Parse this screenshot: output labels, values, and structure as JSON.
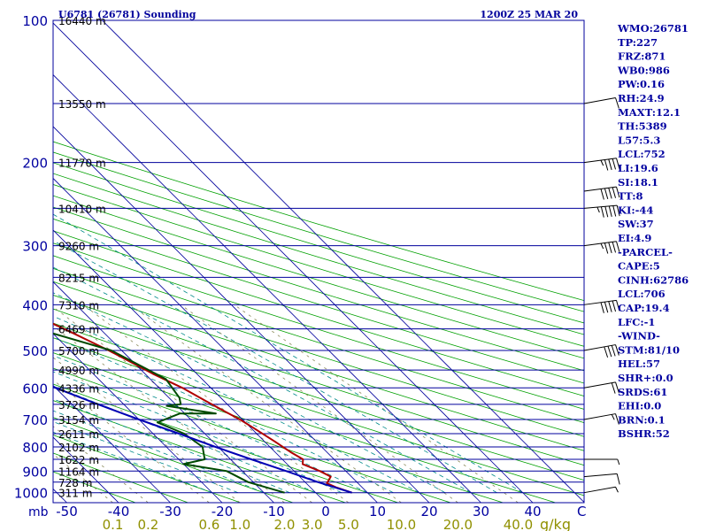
{
  "header": {
    "station": "U6781 (26781) Sounding",
    "time": "1200Z 25 MAR 20"
  },
  "colors": {
    "background": "#ffffff",
    "isobar": "#00009c",
    "isotherm": "#00009c",
    "dry_adiabat": "#00a000",
    "moist_adiabat": "#008a8a",
    "mixing_ratio": "#8a8a5a",
    "temperature": "#b00000",
    "dewpoint": "#004a00",
    "parcel": "#0000b4",
    "axis_label": "#0000a0",
    "mixing_label": "#909000",
    "index_text": "#0000a0"
  },
  "chart_data": {
    "type": "line",
    "title": "U6781 (26781) Sounding",
    "subtitle": "1200Z 25 MAR 20",
    "diagram": "skew-T log-P",
    "pressure_axis_label": "mb",
    "pressure_ticks": [
      "100",
      "200",
      "300",
      "400",
      "500",
      "600",
      "700",
      "800",
      "900",
      "1000"
    ],
    "pressure_tick_values": [
      100,
      200,
      300,
      400,
      500,
      600,
      700,
      800,
      900,
      1000
    ],
    "pressure_range": [
      100,
      1050
    ],
    "temperature_ticks": [
      "-50",
      "-40",
      "-30",
      "-20",
      "-10",
      "0",
      "10",
      "20",
      "30",
      "40"
    ],
    "temperature_tick_values": [
      -50,
      -40,
      -30,
      -20,
      -10,
      0,
      10,
      20,
      30,
      40
    ],
    "temperature_range": [
      -50,
      50
    ],
    "temperature_unit": "C",
    "mixing_ratio_labels": [
      "0.1",
      "0.2",
      "0.6",
      "1.0",
      "2.0",
      "3.0",
      "5.0",
      "10.0",
      "20.0",
      "40.0"
    ],
    "mixing_ratio_values": [
      0.1,
      0.2,
      0.6,
      1.0,
      2.0,
      3.0,
      5.0,
      10.0,
      20.0,
      40.0
    ],
    "mixing_ratio_unit": "g/kg",
    "height_labels": [
      {
        "p": 100,
        "text": "16440 m"
      },
      {
        "p": 150,
        "text": "13550 m"
      },
      {
        "p": 200,
        "text": "11770 m"
      },
      {
        "p": 250,
        "text": "10410 m"
      },
      {
        "p": 300,
        "text": "9260 m"
      },
      {
        "p": 350,
        "text": "8215 m"
      },
      {
        "p": 400,
        "text": "7310 m"
      },
      {
        "p": 450,
        "text": "6469 m"
      },
      {
        "p": 500,
        "text": "5700 m"
      },
      {
        "p": 550,
        "text": "4990 m"
      },
      {
        "p": 600,
        "text": "4336 m"
      },
      {
        "p": 650,
        "text": "3726 m"
      },
      {
        "p": 700,
        "text": "3154 m"
      },
      {
        "p": 750,
        "text": "2611 m"
      },
      {
        "p": 800,
        "text": "2102 m"
      },
      {
        "p": 850,
        "text": "1622 m"
      },
      {
        "p": 900,
        "text": "1164 m"
      },
      {
        "p": 950,
        "text": "728 m"
      },
      {
        "p": 1000,
        "text": "311 m"
      }
    ],
    "series": [
      {
        "key": "temperature",
        "points": [
          [
            1000,
            7.0
          ],
          [
            975,
            5.0
          ],
          [
            955,
            4.0
          ],
          [
            925,
            6.0
          ],
          [
            900,
            5.0
          ],
          [
            870,
            3.0
          ],
          [
            850,
            4.0
          ],
          [
            820,
            3.0
          ],
          [
            780,
            2.0
          ],
          [
            730,
            0.5
          ],
          [
            700,
            -0.5
          ],
          [
            680,
            -1.5
          ],
          [
            660,
            -2.5
          ],
          [
            640,
            -3.5
          ],
          [
            600,
            -5.5
          ],
          [
            560,
            -8.5
          ],
          [
            500,
            -12.5
          ],
          [
            460,
            -16.0
          ],
          [
            430,
            -19.0
          ],
          [
            400,
            -22.5
          ],
          [
            350,
            -30.0
          ],
          [
            300,
            -37.5
          ],
          [
            250,
            -45.0
          ],
          [
            230,
            -48.5
          ],
          [
            220,
            -49.0
          ],
          [
            210,
            -46.0
          ],
          [
            200,
            -45.0
          ],
          [
            190,
            -46.0
          ],
          [
            180,
            -44.0
          ],
          [
            165,
            -40.0
          ],
          [
            155,
            -42.0
          ],
          [
            145,
            -43.0
          ],
          [
            130,
            -42.0
          ],
          [
            120,
            -42.0
          ],
          [
            100,
            -47.0
          ]
        ]
      },
      {
        "key": "dewpoint",
        "points": [
          [
            1000,
            -6.0
          ],
          [
            950,
            -11.0
          ],
          [
            900,
            -13.0
          ],
          [
            870,
            -20.0
          ],
          [
            850,
            -15.0
          ],
          [
            800,
            -13.0
          ],
          [
            750,
            -14.0
          ],
          [
            710,
            -17.0
          ],
          [
            680,
            -11.0
          ],
          [
            680,
            -4.0
          ],
          [
            655,
            -12.0
          ],
          [
            650,
            -9.0
          ],
          [
            630,
            -8.0
          ],
          [
            575,
            -7.0
          ],
          [
            500,
            -12.0
          ],
          [
            460,
            -20.0
          ],
          [
            420,
            -20.0
          ],
          [
            400,
            -25.0
          ],
          [
            350,
            -36.0
          ],
          [
            300,
            -47.0
          ],
          [
            260,
            -57.0
          ],
          [
            245,
            -59.0
          ],
          [
            230,
            -62.0
          ],
          [
            210,
            -59.0
          ],
          [
            200,
            -59.0
          ],
          [
            190,
            -62.0
          ],
          [
            175,
            -61.0
          ],
          [
            160,
            -62.0
          ],
          [
            150,
            -64.0
          ],
          [
            130,
            -65.0
          ],
          [
            115,
            -65.0
          ],
          [
            100,
            -68.0
          ]
        ]
      },
      {
        "key": "parcel",
        "points": [
          [
            1000,
            7.0
          ],
          [
            950,
            2.5
          ],
          [
            900,
            -1.5
          ],
          [
            850,
            -6.0
          ],
          [
            800,
            -10.5
          ],
          [
            750,
            -15.0
          ],
          [
            700,
            -20.0
          ],
          [
            650,
            -25.0
          ],
          [
            600,
            -30.0
          ],
          [
            550,
            -35.5
          ],
          [
            500,
            -41.0
          ],
          [
            450,
            -47.0
          ],
          [
            400,
            -54.0
          ],
          [
            350,
            -61.0
          ],
          [
            300,
            -68.5
          ],
          [
            250,
            -76.5
          ],
          [
            200,
            -84.5
          ],
          [
            150,
            -94.0
          ],
          [
            115,
            -102.0
          ]
        ]
      }
    ],
    "wind_barbs": [
      {
        "p": 1000,
        "speed_kt": 5,
        "dir": 250
      },
      {
        "p": 925,
        "speed_kt": 10,
        "dir": 260
      },
      {
        "p": 850,
        "speed_kt": 5,
        "dir": 270
      },
      {
        "p": 700,
        "speed_kt": 15,
        "dir": 250
      },
      {
        "p": 600,
        "speed_kt": 20,
        "dir": 250
      },
      {
        "p": 500,
        "speed_kt": 40,
        "dir": 250
      },
      {
        "p": 400,
        "speed_kt": 50,
        "dir": 255
      },
      {
        "p": 300,
        "speed_kt": 45,
        "dir": 255
      },
      {
        "p": 250,
        "speed_kt": 55,
        "dir": 260
      },
      {
        "p": 230,
        "speed_kt": 50,
        "dir": 255
      },
      {
        "p": 200,
        "speed_kt": 45,
        "dir": 255
      },
      {
        "p": 150,
        "speed_kt": 10,
        "dir": 250
      }
    ],
    "grid": true
  },
  "indices": [
    "WMO:26781",
    "TP:227",
    "FRZ:871",
    "WB0:986",
    "PW:0.16",
    "RH:24.9",
    "MAXT:12.1",
    "TH:5389",
    "L57:5.3",
    "LCL:752",
    "LI:19.6",
    "SI:18.1",
    "TT:8",
    "KI:-44",
    "SW:37",
    "EI:4.9",
    "-PARCEL-",
    "CAPE:5",
    "CINH:62786",
    "LCL:706",
    "CAP:19.4",
    "LFC:-1",
    "-WIND-",
    "STM:81/10",
    "HEL:57",
    "SHR+:0.0",
    "SRDS:61",
    "EHI:0.0",
    "BRN:0.1",
    "BSHR:52"
  ]
}
